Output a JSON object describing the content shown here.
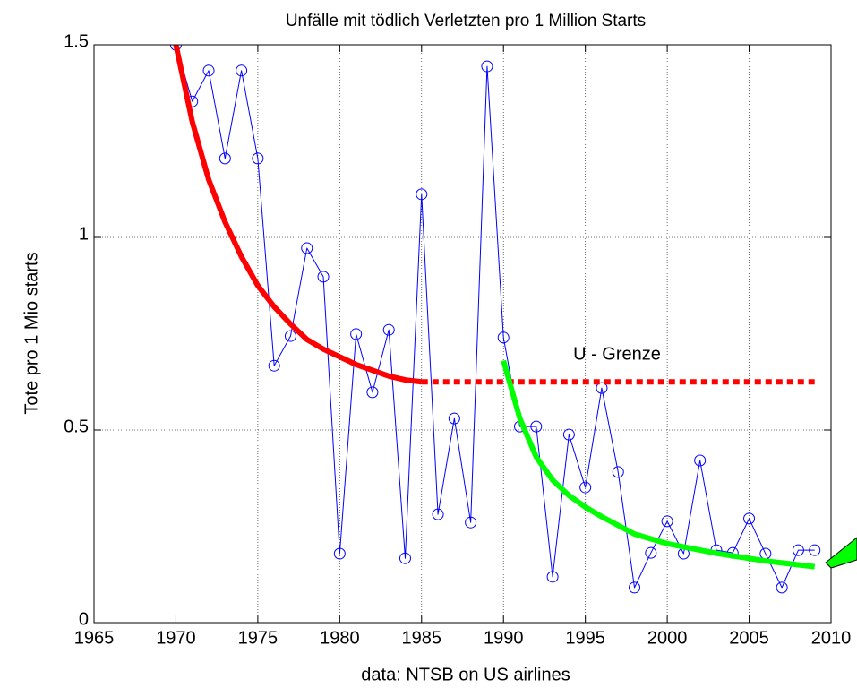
{
  "chart_data": {
    "type": "line",
    "title": "Unfälle mit tödlich Verletzten pro 1 Million Starts",
    "xlabel": "data: NTSB on US airlines",
    "ylabel": "Tote pro 1 Mio starts",
    "annotation": "U - Grenze",
    "xlim": [
      1965,
      2010
    ],
    "xticks": [
      1965,
      1970,
      1975,
      1980,
      1985,
      1990,
      1995,
      2000,
      2005,
      2010
    ],
    "ylim": [
      0,
      1.5
    ],
    "yticks": [
      0,
      0.5,
      1,
      1.5
    ],
    "grid": true,
    "series": [
      {
        "color": "#0000ff",
        "marker": "circle",
        "style": "thin",
        "x": [
          1970,
          1971,
          1972,
          1973,
          1974,
          1975,
          1976,
          1977,
          1978,
          1979,
          1980,
          1981,
          1982,
          1983,
          1984,
          1985,
          1986,
          1987,
          1988,
          1989,
          1990,
          1991,
          1992,
          1993,
          1994,
          1995,
          1996,
          1997,
          1998,
          1999,
          2000,
          2001,
          2002,
          2003,
          2004,
          2005,
          2006,
          2007,
          2008,
          2009
        ],
        "values": [
          1.5,
          1.353,
          1.433,
          1.205,
          1.433,
          1.205,
          0.667,
          0.744,
          0.972,
          0.898,
          0.179,
          0.749,
          0.598,
          0.76,
          0.167,
          1.112,
          0.281,
          0.53,
          0.26,
          1.444,
          0.74,
          0.509,
          0.509,
          0.119,
          0.488,
          0.351,
          0.609,
          0.391,
          0.091,
          0.181,
          0.263,
          0.179,
          0.421,
          0.188,
          0.181,
          0.27,
          0.179,
          0.091,
          0.188,
          0.188
        ]
      },
      {
        "color": "#ff0000",
        "style": "thick",
        "x": [
          1970,
          1971,
          1972,
          1973,
          1974,
          1975,
          1976,
          1977,
          1978,
          1979,
          1980,
          1981,
          1982,
          1983,
          1984,
          1985
        ],
        "values": [
          1.5,
          1.3,
          1.15,
          1.04,
          0.95,
          0.875,
          0.82,
          0.775,
          0.735,
          0.71,
          0.69,
          0.67,
          0.655,
          0.64,
          0.63,
          0.625
        ]
      },
      {
        "color": "#ff0000",
        "style": "thick-dashed",
        "x": [
          1985,
          2009
        ],
        "values": [
          0.625,
          0.625
        ]
      },
      {
        "color": "#00ff00",
        "style": "thick",
        "x": [
          1990,
          1991,
          1992,
          1993,
          1994,
          1995,
          1996,
          1998,
          2000,
          2003,
          2006,
          2009
        ],
        "values": [
          0.68,
          0.53,
          0.43,
          0.37,
          0.33,
          0.3,
          0.275,
          0.23,
          0.205,
          0.18,
          0.16,
          0.145
        ]
      }
    ]
  }
}
